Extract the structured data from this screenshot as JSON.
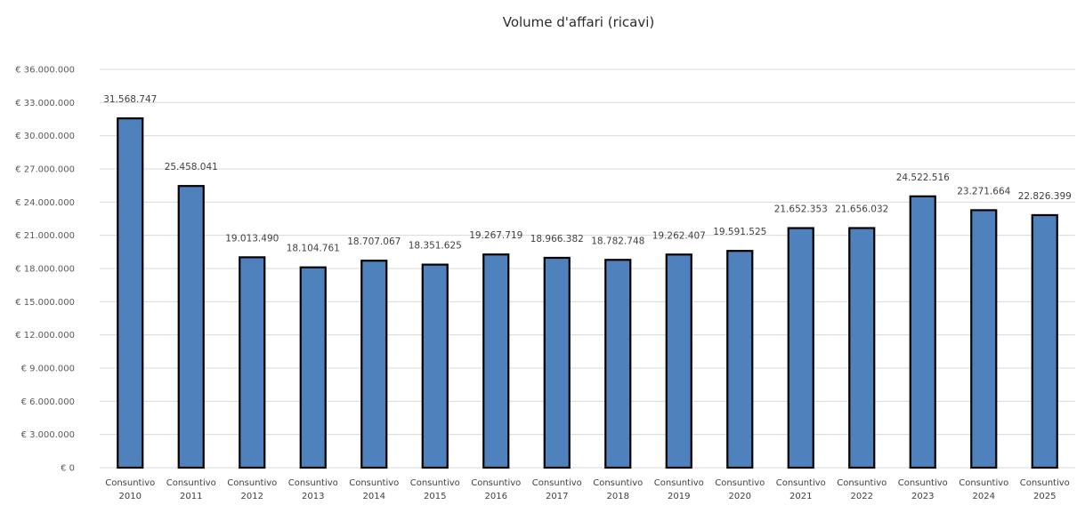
{
  "chart_data": {
    "type": "bar",
    "title": "Volume d'affari (ricavi)",
    "xlabel": "",
    "ylabel": "",
    "categories": [
      [
        "Consuntivo",
        "2010"
      ],
      [
        "Consuntivo",
        "2011"
      ],
      [
        "Consuntivo",
        "2012"
      ],
      [
        "Consuntivo",
        "2013"
      ],
      [
        "Consuntivo",
        "2014"
      ],
      [
        "Consuntivo",
        "2015"
      ],
      [
        "Consuntivo",
        "2016"
      ],
      [
        "Consuntivo",
        "2017"
      ],
      [
        "Consuntivo",
        "2018"
      ],
      [
        "Consuntivo",
        "2019"
      ],
      [
        "Consuntivo",
        "2020"
      ],
      [
        "Consuntivo",
        "2021"
      ],
      [
        "Consuntivo",
        "2022"
      ],
      [
        "Consuntivo",
        "2023"
      ],
      [
        "Consuntivo",
        "2024"
      ],
      [
        "Consuntivo",
        "2025"
      ]
    ],
    "values": [
      31568747,
      25458041,
      19013490,
      18104761,
      18707067,
      18351625,
      19267719,
      18966382,
      18782748,
      19262407,
      19591525,
      21652353,
      21656032,
      24522516,
      23271664,
      22826399
    ],
    "data_labels": [
      "31.568.747",
      "25.458.041",
      "19.013.490",
      "18.104.761",
      "18.707.067",
      "18.351.625",
      "19.267.719",
      "18.966.382",
      "18.782.748",
      "19.262.407",
      "19.591.525",
      "21.652.353",
      "21.656.032",
      "24.522.516",
      "23.271.664",
      "22.826.399"
    ],
    "ylim": [
      0,
      36000000
    ],
    "yticks": [
      0,
      3000000,
      6000000,
      9000000,
      12000000,
      15000000,
      18000000,
      21000000,
      24000000,
      27000000,
      30000000,
      33000000,
      36000000
    ],
    "ytick_labels": [
      "€ 0",
      "€ 3.000.000",
      "€ 6.000.000",
      "€ 9.000.000",
      "€ 12.000.000",
      "€ 15.000.000",
      "€ 18.000.000",
      "€ 21.000.000",
      "€ 24.000.000",
      "€ 27.000.000",
      "€ 30.000.000",
      "€ 33.000.000",
      "€ 36.000.000"
    ],
    "grid": true,
    "legend": "none",
    "bar_color": "#4f81bd",
    "bar_outline_color": "#000000"
  }
}
